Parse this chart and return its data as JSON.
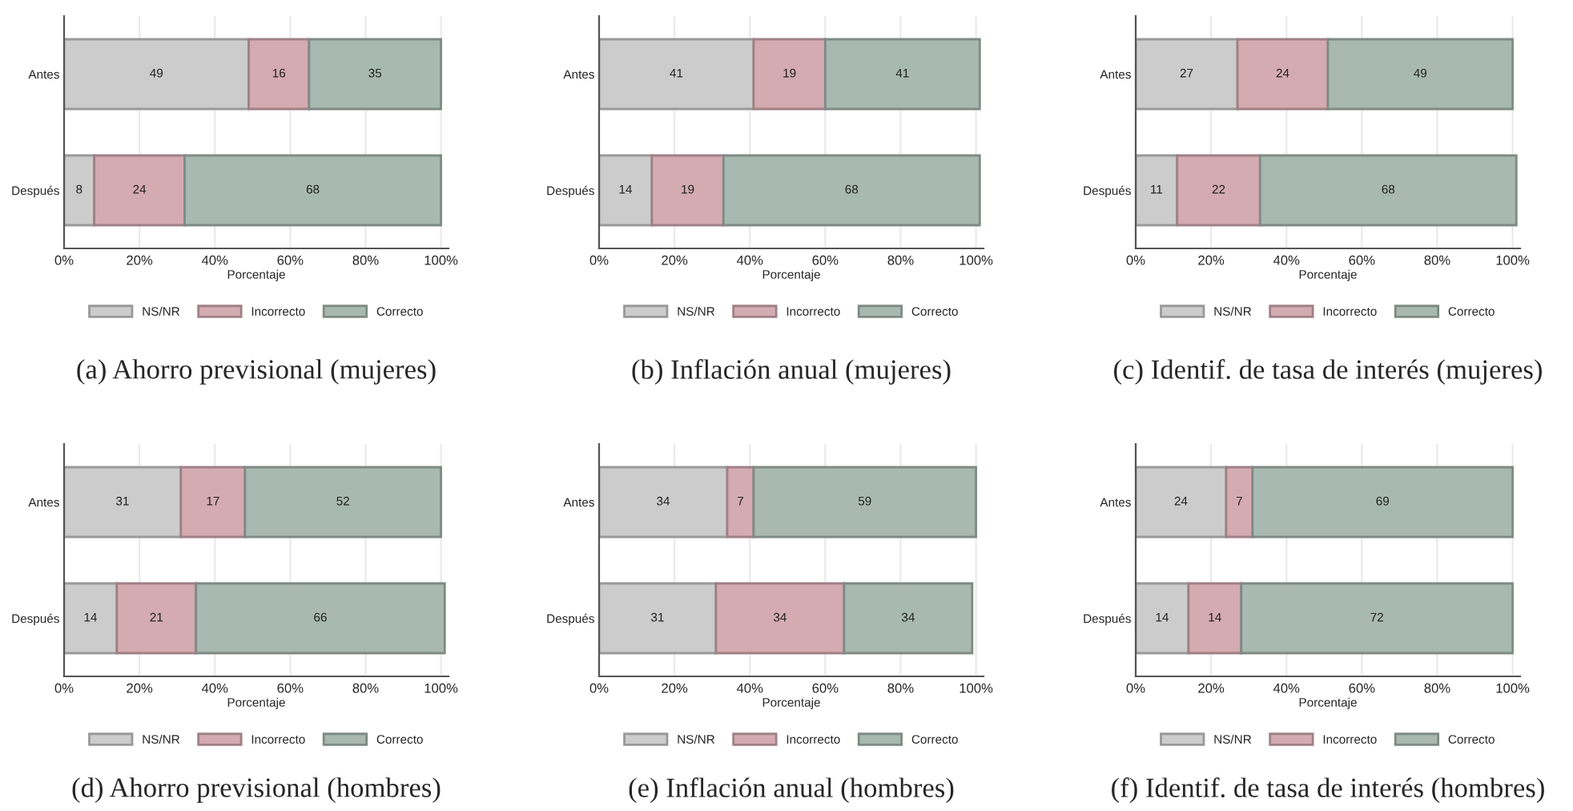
{
  "chart_data": [
    {
      "type": "bar",
      "title": "(a) Ahorro previsional (mujeres)",
      "orientation": "horizontal",
      "stacked": true,
      "categories": [
        "Antes",
        "Después"
      ],
      "xlabel": "Porcentaje",
      "xlim": [
        0,
        102
      ],
      "xticks": [
        {
          "value": 0,
          "label": "0%"
        },
        {
          "value": 20,
          "label": "20%"
        },
        {
          "value": 40,
          "label": "40%"
        },
        {
          "value": 60,
          "label": "60%"
        },
        {
          "value": 80,
          "label": "80%"
        },
        {
          "value": 100,
          "label": "100%"
        }
      ],
      "grid": "x",
      "legend": "bottom",
      "data_labels": true,
      "series": [
        {
          "name": "NS/NR",
          "color": "#cccccc",
          "values": [
            49,
            8
          ]
        },
        {
          "name": "Incorrecto",
          "color": "#d4abb1",
          "values": [
            16,
            24
          ]
        },
        {
          "name": "Correcto",
          "color": "#a8b9b1",
          "values": [
            35,
            68
          ]
        }
      ]
    },
    {
      "type": "bar",
      "title": "(b) Inflación anual (mujeres)",
      "orientation": "horizontal",
      "stacked": true,
      "categories": [
        "Antes",
        "Después"
      ],
      "xlabel": "Porcentaje",
      "xlim": [
        0,
        102
      ],
      "xticks": [
        {
          "value": 0,
          "label": "0%"
        },
        {
          "value": 20,
          "label": "20%"
        },
        {
          "value": 40,
          "label": "40%"
        },
        {
          "value": 60,
          "label": "60%"
        },
        {
          "value": 80,
          "label": "80%"
        },
        {
          "value": 100,
          "label": "100%"
        }
      ],
      "grid": "x",
      "legend": "bottom",
      "data_labels": true,
      "series": [
        {
          "name": "NS/NR",
          "color": "#cccccc",
          "values": [
            41,
            14
          ]
        },
        {
          "name": "Incorrecto",
          "color": "#d4abb1",
          "values": [
            19,
            19
          ]
        },
        {
          "name": "Correcto",
          "color": "#a8b9b1",
          "values": [
            41,
            68
          ]
        }
      ]
    },
    {
      "type": "bar",
      "title": "(c) Identif. de tasa de interés (mujeres)",
      "orientation": "horizontal",
      "stacked": true,
      "categories": [
        "Antes",
        "Después"
      ],
      "xlabel": "Porcentaje",
      "xlim": [
        0,
        102
      ],
      "xticks": [
        {
          "value": 0,
          "label": "0%"
        },
        {
          "value": 20,
          "label": "20%"
        },
        {
          "value": 40,
          "label": "40%"
        },
        {
          "value": 60,
          "label": "60%"
        },
        {
          "value": 80,
          "label": "80%"
        },
        {
          "value": 100,
          "label": "100%"
        }
      ],
      "grid": "x",
      "legend": "bottom",
      "data_labels": true,
      "series": [
        {
          "name": "NS/NR",
          "color": "#cccccc",
          "values": [
            27,
            11
          ]
        },
        {
          "name": "Incorrecto",
          "color": "#d4abb1",
          "values": [
            24,
            22
          ]
        },
        {
          "name": "Correcto",
          "color": "#a8b9b1",
          "values": [
            49,
            68
          ]
        }
      ]
    },
    {
      "type": "bar",
      "title": "(d) Ahorro previsional (hombres)",
      "orientation": "horizontal",
      "stacked": true,
      "categories": [
        "Antes",
        "Después"
      ],
      "xlabel": "Porcentaje",
      "xlim": [
        0,
        102
      ],
      "xticks": [
        {
          "value": 0,
          "label": "0%"
        },
        {
          "value": 20,
          "label": "20%"
        },
        {
          "value": 40,
          "label": "40%"
        },
        {
          "value": 60,
          "label": "60%"
        },
        {
          "value": 80,
          "label": "80%"
        },
        {
          "value": 100,
          "label": "100%"
        }
      ],
      "grid": "x",
      "legend": "bottom",
      "data_labels": true,
      "series": [
        {
          "name": "NS/NR",
          "color": "#cccccc",
          "values": [
            31,
            14
          ]
        },
        {
          "name": "Incorrecto",
          "color": "#d4abb1",
          "values": [
            17,
            21
          ]
        },
        {
          "name": "Correcto",
          "color": "#a8b9b1",
          "values": [
            52,
            66
          ]
        }
      ]
    },
    {
      "type": "bar",
      "title": "(e) Inflación anual (hombres)",
      "orientation": "horizontal",
      "stacked": true,
      "categories": [
        "Antes",
        "Después"
      ],
      "xlabel": "Porcentaje",
      "xlim": [
        0,
        102
      ],
      "xticks": [
        {
          "value": 0,
          "label": "0%"
        },
        {
          "value": 20,
          "label": "20%"
        },
        {
          "value": 40,
          "label": "40%"
        },
        {
          "value": 60,
          "label": "60%"
        },
        {
          "value": 80,
          "label": "80%"
        },
        {
          "value": 100,
          "label": "100%"
        }
      ],
      "grid": "x",
      "legend": "bottom",
      "data_labels": true,
      "series": [
        {
          "name": "NS/NR",
          "color": "#cccccc",
          "values": [
            34,
            31
          ]
        },
        {
          "name": "Incorrecto",
          "color": "#d4abb1",
          "values": [
            7,
            34
          ]
        },
        {
          "name": "Correcto",
          "color": "#a8b9b1",
          "values": [
            59,
            34
          ]
        }
      ]
    },
    {
      "type": "bar",
      "title": "(f) Identif. de tasa de interés (hombres)",
      "orientation": "horizontal",
      "stacked": true,
      "categories": [
        "Antes",
        "Después"
      ],
      "xlabel": "Porcentaje",
      "xlim": [
        0,
        102
      ],
      "xticks": [
        {
          "value": 0,
          "label": "0%"
        },
        {
          "value": 20,
          "label": "20%"
        },
        {
          "value": 40,
          "label": "40%"
        },
        {
          "value": 60,
          "label": "60%"
        },
        {
          "value": 80,
          "label": "80%"
        },
        {
          "value": 100,
          "label": "100%"
        }
      ],
      "grid": "x",
      "legend": "bottom",
      "data_labels": true,
      "series": [
        {
          "name": "NS/NR",
          "color": "#cccccc",
          "values": [
            24,
            14
          ]
        },
        {
          "name": "Incorrecto",
          "color": "#d4abb1",
          "values": [
            7,
            14
          ]
        },
        {
          "name": "Correcto",
          "color": "#a8b9b1",
          "values": [
            69,
            72
          ]
        }
      ]
    }
  ]
}
